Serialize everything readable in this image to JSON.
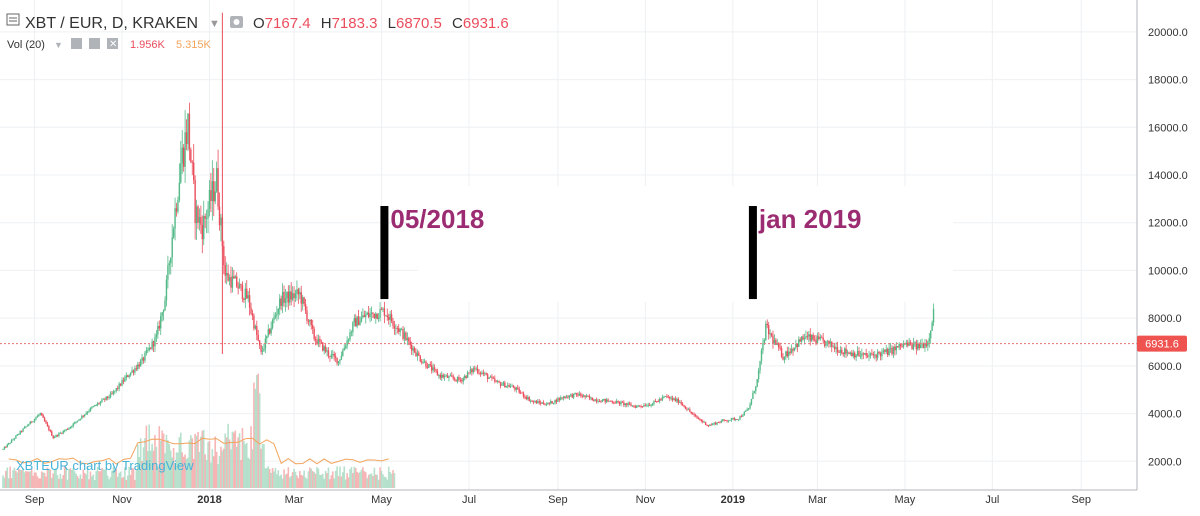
{
  "header": {
    "symbol": "XBT / EUR, D, KRAKEN",
    "o_label": "O",
    "o_value": "7167.4",
    "h_label": "H",
    "h_value": "7183.3",
    "l_label": "L",
    "l_value": "6870.5",
    "c_label": "C",
    "c_value": "6931.6",
    "vol_label": "Vol (20)",
    "vol_value_1": "1.956K",
    "vol_value_2": "5.315K"
  },
  "watermark": "XBTEUR chart by TradingView",
  "annotations": [
    {
      "text": "05/2018",
      "date": "2018-05-03",
      "price_top": 12700,
      "price_bottom": 8800
    },
    {
      "text": "jan 2019",
      "date": "2019-01-15",
      "price_top": 12700,
      "price_bottom": 8800
    }
  ],
  "price_label": "6931.6",
  "colors": {
    "up": "#53b987",
    "down": "#eb4d5c",
    "price_badge": "#ef5350",
    "annotation_text": "#9c2c72",
    "annotation_bar": "#000000"
  },
  "chart_data": {
    "type": "line",
    "title": "",
    "xlabel": "",
    "ylabel": "",
    "ylim": [
      1300,
      21000
    ],
    "xlim": [
      "2017-08-10",
      "2019-10-05"
    ],
    "y_ticks": [
      "2000.0",
      "4000.0",
      "6000.0",
      "8000.0",
      "10000.0",
      "12000.0",
      "14000.0",
      "16000.0",
      "18000.0",
      "20000.0"
    ],
    "x_ticks": [
      {
        "label": "Sep",
        "date": "2017-09-01"
      },
      {
        "label": "Nov",
        "date": "2017-11-01"
      },
      {
        "label": "2018",
        "date": "2018-01-01"
      },
      {
        "label": "Mar",
        "date": "2018-03-01"
      },
      {
        "label": "May",
        "date": "2018-05-01"
      },
      {
        "label": "Jul",
        "date": "2018-07-01"
      },
      {
        "label": "Sep",
        "date": "2018-09-01"
      },
      {
        "label": "Nov",
        "date": "2018-11-01"
      },
      {
        "label": "2019",
        "date": "2019-01-01"
      },
      {
        "label": "Mar",
        "date": "2019-03-01"
      },
      {
        "label": "May",
        "date": "2019-05-01"
      },
      {
        "label": "Jul",
        "date": "2019-07-01"
      },
      {
        "label": "Sep",
        "date": "2019-09-01"
      }
    ],
    "series": [
      {
        "x": [
          "2017-08-10",
          "2017-08-25",
          "2017-09-05",
          "2017-09-14",
          "2017-09-25",
          "2017-10-10",
          "2017-10-25",
          "2017-11-05",
          "2017-11-15",
          "2017-11-25",
          "2017-12-01",
          "2017-12-07",
          "2017-12-12",
          "2017-12-17",
          "2017-12-22",
          "2017-12-27",
          "2018-01-06",
          "2018-01-12",
          "2018-01-20",
          "2018-01-28",
          "2018-02-06",
          "2018-02-12",
          "2018-02-20",
          "2018-03-05",
          "2018-03-15",
          "2018-03-25",
          "2018-04-01",
          "2018-04-12",
          "2018-04-20",
          "2018-05-03",
          "2018-05-15",
          "2018-05-28",
          "2018-06-10",
          "2018-06-25",
          "2018-07-05",
          "2018-07-20",
          "2018-08-01",
          "2018-08-14",
          "2018-08-25",
          "2018-09-05",
          "2018-09-15",
          "2018-09-25",
          "2018-10-10",
          "2018-10-25",
          "2018-11-05",
          "2018-11-15",
          "2018-11-25",
          "2018-12-05",
          "2018-12-15",
          "2018-12-25",
          "2019-01-05",
          "2019-01-12",
          "2019-01-18",
          "2019-01-24",
          "2019-02-05",
          "2019-02-20",
          "2019-03-05",
          "2019-03-20",
          "2019-04-05",
          "2019-04-20",
          "2019-05-01",
          "2019-05-10",
          "2019-05-17",
          "2019-05-21"
        ],
        "values": [
          2500,
          3400,
          4000,
          3000,
          3400,
          4200,
          4800,
          5600,
          6200,
          7200,
          8800,
          12000,
          14500,
          16100,
          12500,
          11800,
          13800,
          9800,
          9400,
          8800,
          6500,
          7500,
          8800,
          9000,
          7200,
          6500,
          6200,
          7800,
          8100,
          8300,
          7400,
          6300,
          5600,
          5400,
          5900,
          5300,
          5100,
          4500,
          4400,
          4700,
          4800,
          4600,
          4500,
          4300,
          4400,
          4700,
          4500,
          3900,
          3500,
          3700,
          3800,
          4200,
          5400,
          7600,
          6400,
          7200,
          7000,
          6600,
          6400,
          6600,
          6900,
          6800,
          7000,
          8300
        ]
      }
    ],
    "volume_bars": {
      "note": ""
    }
  }
}
